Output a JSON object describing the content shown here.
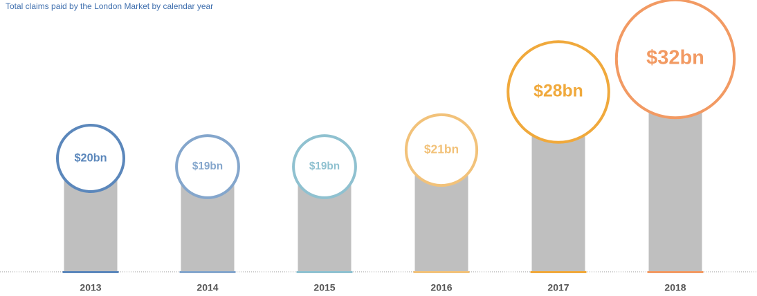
{
  "chart_data": {
    "type": "bubble-bar",
    "title": "Total claims paid by the London Market by calendar year",
    "categories": [
      "2013",
      "2014",
      "2015",
      "2016",
      "2017",
      "2018"
    ],
    "values": [
      20,
      19,
      19,
      21,
      28,
      32
    ],
    "value_labels": [
      "$20bn",
      "$19bn",
      "$19bn",
      "$21bn",
      "$28bn",
      "$32bn"
    ],
    "bar_color": "#bfbfbf",
    "colors": [
      "#5b87bb",
      "#84a6cc",
      "#8fc1d0",
      "#f2c27a",
      "#f0a93c",
      "#f29a63"
    ]
  }
}
